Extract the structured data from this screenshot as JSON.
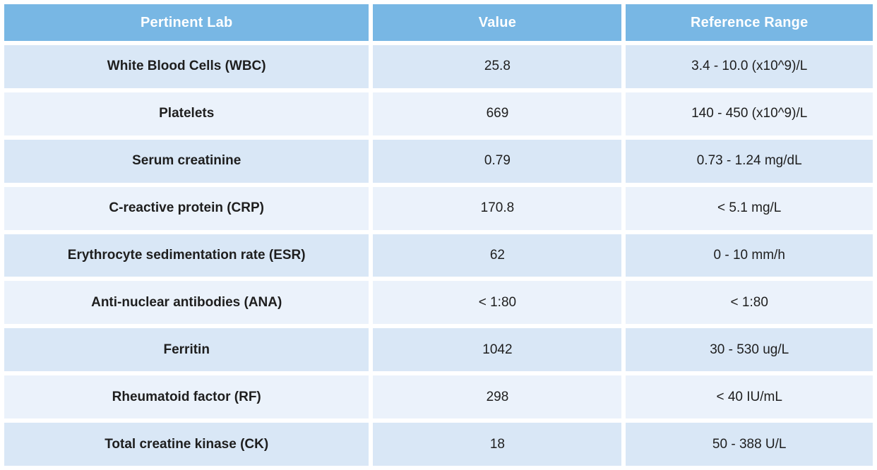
{
  "colors": {
    "header_bg": "#78b7e4",
    "header_text": "#ffffff",
    "row_dark_bg": "#d9e7f6",
    "row_light_bg": "#ebf2fb",
    "cell_text": "#1e1e1e",
    "gap": "#ffffff"
  },
  "table": {
    "columns": [
      "Pertinent Lab",
      "Value",
      "Reference Range"
    ],
    "rows": [
      {
        "lab": "White Blood Cells (WBC)",
        "value": "25.8",
        "range": "3.4 - 10.0 (x10^9)/L"
      },
      {
        "lab": "Platelets",
        "value": "669",
        "range": "140 - 450 (x10^9)/L"
      },
      {
        "lab": "Serum creatinine",
        "value": "0.79",
        "range": "0.73 - 1.24 mg/dL"
      },
      {
        "lab": "C-reactive protein (CRP)",
        "value": "170.8",
        "range": "< 5.1 mg/L"
      },
      {
        "lab": "Erythrocyte sedimentation rate (ESR)",
        "value": "62",
        "range": "0 - 10 mm/h"
      },
      {
        "lab": "Anti-nuclear antibodies (ANA)",
        "value": "< 1:80",
        "range": "< 1:80"
      },
      {
        "lab": "Ferritin",
        "value": "1042",
        "range": "30 - 530 ug/L"
      },
      {
        "lab": "Rheumatoid factor (RF)",
        "value": "298",
        "range": "< 40 IU/mL"
      },
      {
        "lab": "Total creatine kinase (CK)",
        "value": "18",
        "range": "50 - 388 U/L"
      }
    ]
  }
}
